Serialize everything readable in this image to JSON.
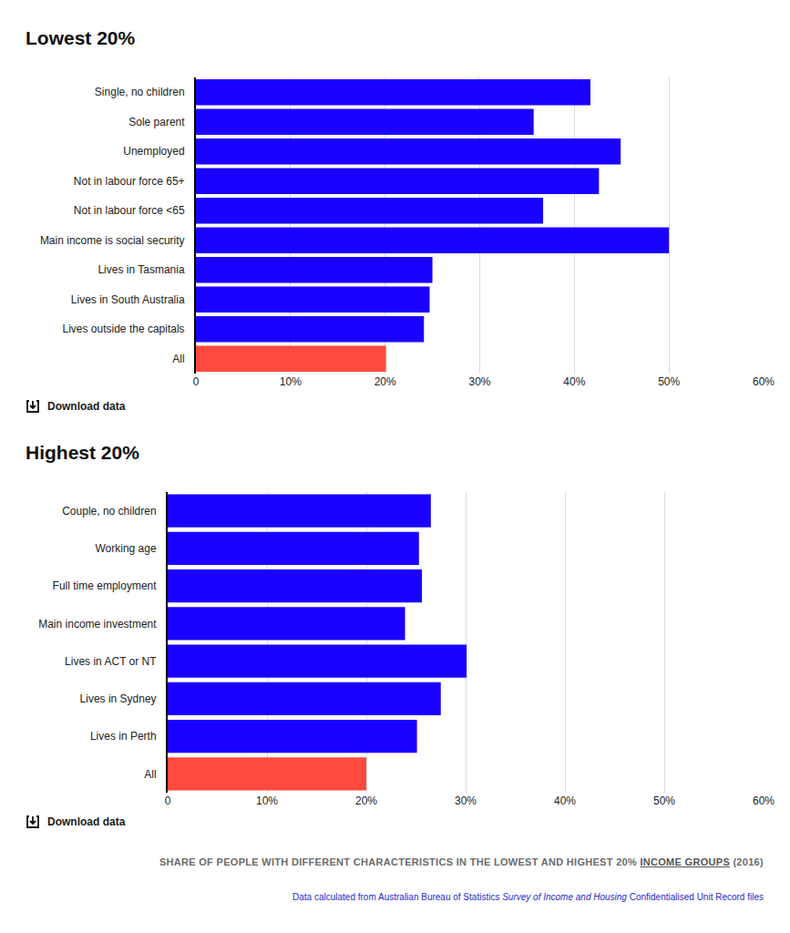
{
  "page": {
    "download_label": "Download data",
    "caption": [
      "SHARE OF PEOPLE WITH DIFFERENT CHARACTERISTICS IN THE LOWEST AND HIGHEST 20% ",
      "INCOME GROUPS",
      " (2016)"
    ],
    "source": [
      "Data calculated from Australian Bureau of Statistics ",
      "Survey of Income and Housing",
      " Confidentialised Unit Record files"
    ]
  },
  "chart_data": [
    {
      "type": "bar",
      "title": "Lowest 20%",
      "orientation": "horizontal",
      "categories": [
        "Single, no children",
        "Sole parent",
        "Unemployed",
        "Not in labour force 65+",
        "Not in labour force <65",
        "Main income is social security",
        "Lives in Tasmania",
        "Lives in South Australia",
        "Lives outside the capitals",
        "All"
      ],
      "values": [
        41.7,
        35.7,
        44.9,
        42.6,
        36.7,
        50.0,
        25.0,
        24.7,
        24.1,
        20.1
      ],
      "colors": [
        "#1a00ff",
        "#1a00ff",
        "#1a00ff",
        "#1a00ff",
        "#1a00ff",
        "#1a00ff",
        "#1a00ff",
        "#1a00ff",
        "#1a00ff",
        "#ff4a3d"
      ],
      "xlim": [
        0,
        60
      ],
      "xticks": [
        0,
        {
          "value": 10,
          "label": "10%"
        },
        {
          "value": 20,
          "label": "20%"
        },
        {
          "value": 30,
          "label": "30%"
        },
        {
          "value": 40,
          "label": "40%"
        },
        {
          "value": 50,
          "label": "50%"
        },
        {
          "value": 60,
          "label": "60%"
        }
      ],
      "grid": true
    },
    {
      "type": "bar",
      "title": "Highest 20%",
      "orientation": "horizontal",
      "categories": [
        "Couple, no children",
        "Working age",
        "Full time employment",
        "Main income investment",
        "Lives in ACT or NT",
        "Lives in Sydney",
        "Lives in Perth",
        "All"
      ],
      "values": [
        26.5,
        25.3,
        25.6,
        23.9,
        30.1,
        27.5,
        25.1,
        20.0
      ],
      "colors": [
        "#1a00ff",
        "#1a00ff",
        "#1a00ff",
        "#1a00ff",
        "#1a00ff",
        "#1a00ff",
        "#1a00ff",
        "#ff4a3d"
      ],
      "xlim": [
        0,
        60
      ],
      "xticks": [
        0,
        {
          "value": 10,
          "label": "10%"
        },
        {
          "value": 20,
          "label": "20%"
        },
        {
          "value": 30,
          "label": "30%"
        },
        {
          "value": 40,
          "label": "40%"
        },
        {
          "value": 50,
          "label": "50%"
        },
        {
          "value": 60,
          "label": "60%"
        }
      ],
      "grid": true
    }
  ]
}
